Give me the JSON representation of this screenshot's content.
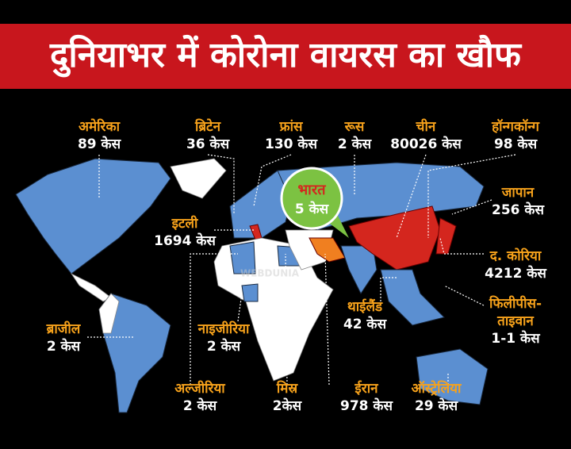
{
  "header": {
    "title": "दुनियाभर में कोरोना वायरस का खौफ"
  },
  "watermark": "WEBDUNIA",
  "callout": {
    "name_lines": [
      "भारत"
    ],
    "cases": "5 केस"
  },
  "labels": [
    {
      "name_lines": [
        "अमेरिका"
      ],
      "cases": "89 केस"
    },
    {
      "name_lines": [
        "ब्रिटेन"
      ],
      "cases": "36 केस"
    },
    {
      "name_lines": [
        "फ्रांस"
      ],
      "cases": "130 केस"
    },
    {
      "name_lines": [
        "रूस"
      ],
      "cases": "2 केस"
    },
    {
      "name_lines": [
        "चीन"
      ],
      "cases": "80026 केस"
    },
    {
      "name_lines": [
        "हॉन्गकॉन्ग"
      ],
      "cases": "98 केस"
    },
    {
      "name_lines": [
        "जापान"
      ],
      "cases": "256 केस"
    },
    {
      "name_lines": [
        "इटली"
      ],
      "cases": "1694 केस"
    },
    {
      "name_lines": [
        "द. कोरिया"
      ],
      "cases": "4212 केस"
    },
    {
      "name_lines": [
        "थाईलैंड"
      ],
      "cases": "42 केस"
    },
    {
      "name_lines": [
        "फिलीपीस-",
        "ताइवान"
      ],
      "cases": "1-1 केस"
    },
    {
      "name_lines": [
        "ब्राजील"
      ],
      "cases": "2 केस"
    },
    {
      "name_lines": [
        "नाइजीरिया"
      ],
      "cases": "2 केस"
    },
    {
      "name_lines": [
        "अल्जीरिया"
      ],
      "cases": "2 केस"
    },
    {
      "name_lines": [
        "मिस्र"
      ],
      "cases": "2केस"
    },
    {
      "name_lines": [
        "ईरान"
      ],
      "cases": "978 केस"
    },
    {
      "name_lines": [
        "ऑस्ट्रेलिया"
      ],
      "cases": "29 केस"
    }
  ]
}
